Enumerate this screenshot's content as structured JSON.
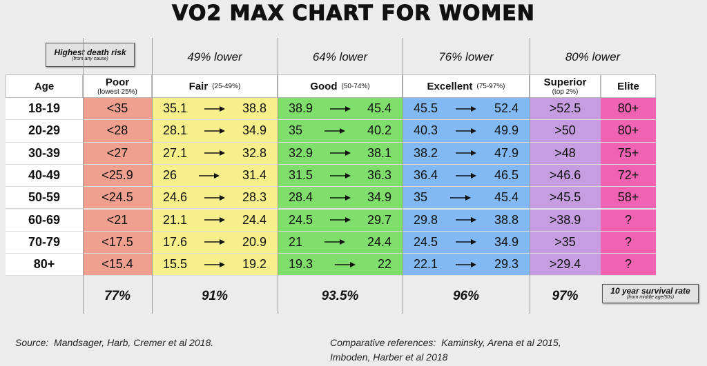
{
  "title": "VO2 MAX CHART FOR WOMEN",
  "risk_row": {
    "baseline": {
      "label": "Highest death risk",
      "note": "(from any cause)"
    },
    "reductions": [
      "49% lower",
      "64% lower",
      "76% lower",
      "80% lower"
    ]
  },
  "table": {
    "columns": [
      {
        "label": "Age"
      },
      {
        "label": "Poor",
        "note": "(lowest 25%)"
      },
      {
        "label": "Fair",
        "note": "(25-49%)"
      },
      {
        "label": "Good",
        "note": "(50-74%)"
      },
      {
        "label": "Excellent",
        "note": "(75-97%)"
      },
      {
        "label": "Superior",
        "note": "(top 2%)"
      },
      {
        "label": "Elite"
      }
    ],
    "rows": [
      [
        "18-19",
        "<35",
        [
          35.1,
          38.8
        ],
        [
          38.9,
          45.4
        ],
        [
          45.5,
          52.4
        ],
        ">52.5",
        "80+"
      ],
      [
        "20-29",
        "<28",
        [
          28.1,
          34.9
        ],
        [
          35,
          40.2
        ],
        [
          40.3,
          49.9
        ],
        ">50",
        "80+"
      ],
      [
        "30-39",
        "<27",
        [
          27.1,
          32.8
        ],
        [
          32.9,
          38.1
        ],
        [
          38.2,
          47.9
        ],
        ">48",
        "75+"
      ],
      [
        "40-49",
        "<25.9",
        [
          26,
          31.4
        ],
        [
          31.5,
          36.3
        ],
        [
          36.4,
          46.5
        ],
        ">46.6",
        "72+"
      ],
      [
        "50-59",
        "<24.5",
        [
          24.6,
          28.3
        ],
        [
          28.4,
          34.9
        ],
        [
          35,
          45.4
        ],
        ">45.5",
        "58+"
      ],
      [
        "60-69",
        "<21",
        [
          21.1,
          24.4
        ],
        [
          24.5,
          29.7
        ],
        [
          29.8,
          38.8
        ],
        ">38.9",
        "?"
      ],
      [
        "70-79",
        "<17.5",
        [
          17.6,
          20.9
        ],
        [
          21,
          24.4
        ],
        [
          24.5,
          34.9
        ],
        ">35",
        "?"
      ],
      [
        "80+",
        "<15.4",
        [
          15.5,
          19.2
        ],
        [
          19.3,
          22
        ],
        [
          22.1,
          29.3
        ],
        ">29.4",
        "?"
      ]
    ]
  },
  "survival": {
    "values": [
      "77%",
      "91%",
      "93.5%",
      "96%",
      "97%"
    ],
    "label": "10 year survival rate",
    "note": "(from middle age/50s)"
  },
  "footer": {
    "source": "Source:  Mandsager, Harb, Cremer et al 2018.",
    "references": [
      "Comparative references:  Kaminsky, Arena et al 2015,",
      "Imboden, Harber et al 2018"
    ]
  }
}
